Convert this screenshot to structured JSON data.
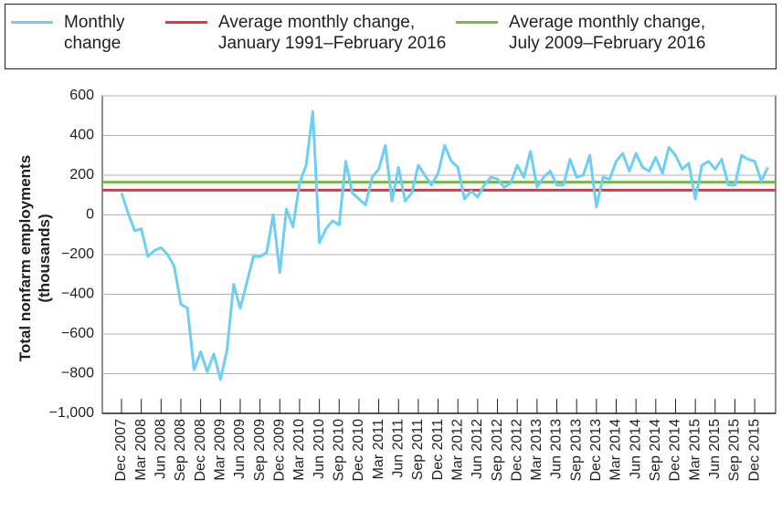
{
  "chart_data": {
    "type": "line",
    "y_label": "Total nonfarm employments (thousands)",
    "categories": [
      "Dec 2007",
      null,
      null,
      "Mar 2008",
      null,
      null,
      "Jun 2008",
      null,
      null,
      "Sep 2008",
      null,
      null,
      "Dec 2008",
      null,
      null,
      "Mar 2009",
      null,
      null,
      "Jun 2009",
      null,
      null,
      "Sep 2009",
      null,
      null,
      "Dec 2009",
      null,
      null,
      "Mar 2010",
      null,
      null,
      "Jun 2010",
      null,
      null,
      "Sep 2010",
      null,
      null,
      "Dec 2010",
      null,
      null,
      "Mar 2011",
      null,
      null,
      "Jun 2011",
      null,
      null,
      "Sep 2011",
      null,
      null,
      "Dec 2011",
      null,
      null,
      "Mar 2012",
      null,
      null,
      "Jun 2012",
      null,
      null,
      "Sep 2012",
      null,
      null,
      "Dec 2012",
      null,
      null,
      "Mar 2013",
      null,
      null,
      "Jun 2013",
      null,
      null,
      "Sep 2013",
      null,
      null,
      "Dec 2013",
      null,
      null,
      "Mar 2014",
      null,
      null,
      "Jun 2014",
      null,
      null,
      "Sep 2014",
      null,
      null,
      "Dec 2014",
      null,
      null,
      "Mar 2015",
      null,
      null,
      "Jun 2015",
      null,
      null,
      "Sep 2015",
      null,
      null,
      "Dec 2015",
      null,
      null
    ],
    "series": [
      {
        "name": "Monthly change",
        "color": "#6dcff6",
        "values": [
          110,
          10,
          -80,
          -70,
          -210,
          -180,
          -165,
          -200,
          -260,
          -450,
          -470,
          -780,
          -690,
          -790,
          -700,
          -830,
          -680,
          -350,
          -470,
          -340,
          -210,
          -210,
          -190,
          0,
          -290,
          30,
          -60,
          160,
          250,
          520,
          -140,
          -70,
          -30,
          -50,
          270,
          110,
          80,
          50,
          190,
          230,
          350,
          70,
          240,
          70,
          110,
          250,
          200,
          150,
          210,
          350,
          270,
          240,
          80,
          120,
          90,
          150,
          190,
          180,
          140,
          160,
          250,
          190,
          320,
          140,
          190,
          220,
          150,
          150,
          280,
          190,
          200,
          300,
          40,
          190,
          180,
          270,
          310,
          220,
          310,
          240,
          220,
          290,
          210,
          340,
          300,
          230,
          260,
          80,
          250,
          270,
          230,
          280,
          150,
          150,
          300,
          280,
          270,
          170,
          240
        ]
      }
    ],
    "reference_lines": [
      {
        "name": "Average monthly change, January 1991–February 2016",
        "color": "#e8333b",
        "value": 125
      },
      {
        "name": "Average monthly change, July 2009–February 2016",
        "color": "#7ab648",
        "value": 165
      }
    ],
    "ylim": [
      -1000,
      600
    ],
    "yticks": [
      {
        "value": -1000,
        "label": "−1,000"
      },
      {
        "value": -800,
        "label": "−800"
      },
      {
        "value": -600,
        "label": "−600"
      },
      {
        "value": -400,
        "label": "−400"
      },
      {
        "value": -200,
        "label": "−200"
      },
      0,
      200,
      400,
      600
    ],
    "grid": true
  }
}
